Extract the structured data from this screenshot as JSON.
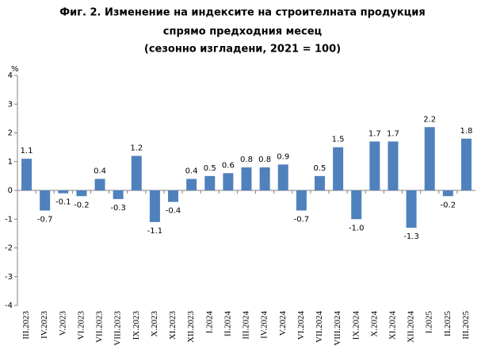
{
  "chart_data": {
    "type": "bar",
    "title": [
      "Фиг. 2. Изменение на индексите на строителната продукция",
      "спрямо предходния месец",
      "(сезонно изгладени, 2021 = 100)"
    ],
    "y_label": "%",
    "categories": [
      "III.2023",
      "IV.2023",
      "V.2023",
      "VI.2023",
      "VII.2023",
      "VIII.2023",
      "IX.2023",
      "X.2023",
      "XI.2023",
      "XII.2023",
      "I.2024",
      "II.2024",
      "III.2024",
      "IV.2024",
      "V.2024",
      "VI.2024",
      "VII.2024",
      "VIII.2024",
      "IX.2024",
      "X.2024",
      "XI.2024",
      "XII.2024",
      "I.2025",
      "II.2025",
      "III.2025"
    ],
    "values": [
      1.1,
      -0.7,
      -0.1,
      -0.2,
      0.4,
      -0.3,
      1.2,
      -1.1,
      -0.4,
      0.4,
      0.5,
      0.6,
      0.8,
      0.8,
      0.9,
      -0.7,
      0.5,
      1.5,
      -1.0,
      1.7,
      1.7,
      -1.3,
      2.2,
      -0.2,
      1.8
    ],
    "value_labels": [
      "1.1",
      "-0.7",
      "-0.1",
      "-0.2",
      "0.4",
      "-0.3",
      "1.2",
      "-1.1",
      "-0.4",
      "0.4",
      "0.5",
      "0.6",
      "0.8",
      "0.8",
      "0.9",
      "-0.7",
      "0.5",
      "1.5",
      "-1.0",
      "1.7",
      "1.7",
      "-1.3",
      "2.2",
      "-0.2",
      "1.8"
    ],
    "color": "#4f81bd",
    "ylim": [
      -4,
      4
    ],
    "yticks": [
      -4,
      -3,
      -2,
      -1,
      0,
      1,
      2,
      3,
      4
    ],
    "grid": false
  }
}
